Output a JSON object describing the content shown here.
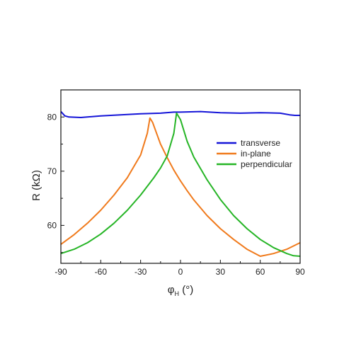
{
  "chart_data": {
    "type": "line",
    "xlabel": {
      "main": "φ",
      "sub": "H",
      "unit": " (°)"
    },
    "ylabel": "R (kΩ)",
    "xlim": [
      -90,
      90
    ],
    "ylim": [
      53,
      85
    ],
    "x_ticks": [
      -90,
      -60,
      -30,
      0,
      30,
      60,
      90
    ],
    "x_tick_labels": [
      "-90",
      "-60",
      "-30",
      "0",
      "30",
      "60",
      "90"
    ],
    "y_ticks": [
      60,
      70,
      80
    ],
    "y_tick_labels": [
      "60",
      "70",
      "80"
    ],
    "grid": false,
    "legend_position": "upper-right",
    "series": [
      {
        "name": "transverse",
        "color": "#1515d8",
        "x": [
          -90,
          -87,
          -84,
          -75,
          -60,
          -45,
          -30,
          -15,
          -5,
          0,
          15,
          30,
          45,
          60,
          75,
          82,
          86,
          90
        ],
        "y": [
          81.0,
          80.2,
          80.0,
          79.9,
          80.2,
          80.4,
          80.6,
          80.7,
          80.9,
          80.9,
          81.0,
          80.8,
          80.7,
          80.8,
          80.7,
          80.4,
          80.3,
          80.3
        ]
      },
      {
        "name": "in-plane",
        "color": "#f07a1c",
        "x": [
          -90,
          -80,
          -70,
          -60,
          -50,
          -40,
          -30,
          -25,
          -23,
          -21,
          -18,
          -15,
          -10,
          -5,
          0,
          5,
          10,
          20,
          30,
          40,
          50,
          60,
          70,
          80,
          85,
          90
        ],
        "y": [
          56.5,
          58.3,
          60.4,
          62.8,
          65.6,
          68.8,
          73.0,
          77.0,
          79.8,
          79.0,
          77.0,
          75.0,
          72.5,
          70.2,
          68.2,
          66.4,
          64.7,
          61.8,
          59.4,
          57.4,
          55.6,
          54.3,
          54.8,
          55.6,
          56.2,
          56.8
        ]
      },
      {
        "name": "perpendicular",
        "color": "#26b526",
        "x": [
          -90,
          -80,
          -70,
          -60,
          -50,
          -40,
          -30,
          -20,
          -15,
          -10,
          -5,
          -3,
          0,
          5,
          10,
          20,
          30,
          40,
          50,
          60,
          70,
          80,
          85,
          90
        ],
        "y": [
          54.8,
          55.6,
          56.8,
          58.4,
          60.4,
          62.8,
          65.6,
          68.8,
          70.6,
          72.8,
          77.0,
          80.7,
          79.5,
          75.5,
          72.6,
          68.4,
          64.8,
          61.8,
          59.4,
          57.4,
          55.9,
          54.8,
          54.4,
          54.3
        ]
      }
    ]
  }
}
